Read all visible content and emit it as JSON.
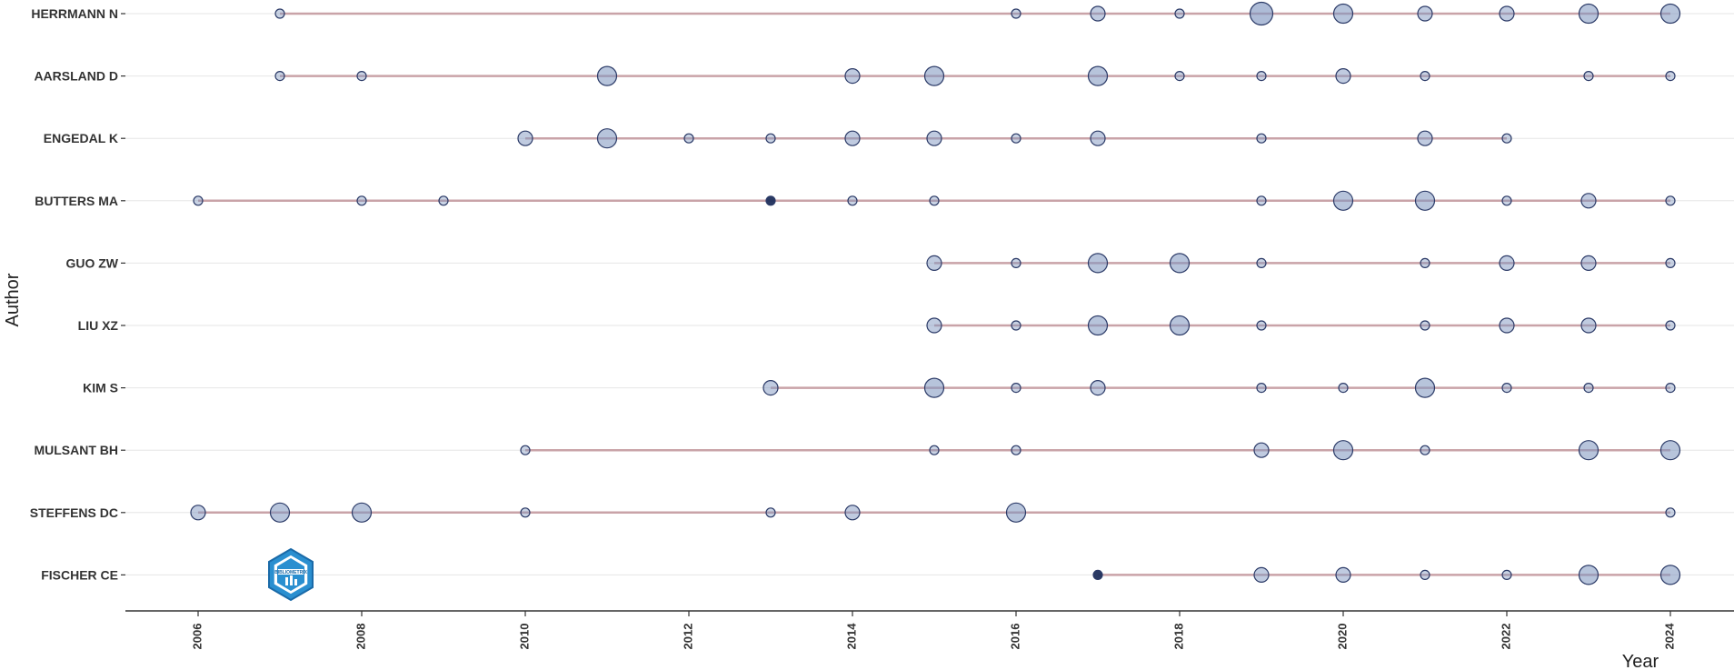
{
  "chart_data": {
    "type": "scatter",
    "subtype": "author-production-over-time",
    "xlabel": "Year",
    "ylabel": "Author",
    "xlim": [
      2006,
      2024
    ],
    "x_ticks": [
      "2006",
      "2008",
      "2010",
      "2012",
      "2014",
      "2016",
      "2018",
      "2020",
      "2022",
      "2024"
    ],
    "grid": true,
    "colors": {
      "line": "#c9a3a8",
      "point_fill": "#7f95bf",
      "point_stroke": "#2b3a67",
      "dark_point": "#1f2f5c",
      "grid": "#e6e6e6",
      "axis": "#333333"
    },
    "logo_text": "BIBLIOMETRIX",
    "authors": [
      {
        "name": "HERRMANN N",
        "points": [
          [
            2007,
            1
          ],
          [
            2016,
            1
          ],
          [
            2017,
            2
          ],
          [
            2018,
            1
          ],
          [
            2019,
            4
          ],
          [
            2020,
            3
          ],
          [
            2021,
            2
          ],
          [
            2022,
            2
          ],
          [
            2023,
            3
          ],
          [
            2024,
            3
          ]
        ]
      },
      {
        "name": "AARSLAND D",
        "points": [
          [
            2007,
            1
          ],
          [
            2008,
            1
          ],
          [
            2011,
            3
          ],
          [
            2014,
            2
          ],
          [
            2015,
            3
          ],
          [
            2017,
            3
          ],
          [
            2018,
            1
          ],
          [
            2019,
            1
          ],
          [
            2020,
            2
          ],
          [
            2021,
            1
          ],
          [
            2023,
            1
          ],
          [
            2024,
            1
          ]
        ]
      },
      {
        "name": "ENGEDAL K",
        "points": [
          [
            2010,
            2
          ],
          [
            2011,
            3
          ],
          [
            2012,
            1
          ],
          [
            2013,
            1
          ],
          [
            2014,
            2
          ],
          [
            2015,
            2
          ],
          [
            2016,
            1
          ],
          [
            2017,
            2
          ],
          [
            2019,
            1
          ],
          [
            2021,
            2
          ],
          [
            2022,
            1
          ]
        ]
      },
      {
        "name": "BUTTERS MA",
        "points": [
          [
            2006,
            1
          ],
          [
            2008,
            1
          ],
          [
            2009,
            1
          ],
          [
            2013,
            1
          ],
          [
            2014,
            1
          ],
          [
            2015,
            1
          ],
          [
            2019,
            1
          ],
          [
            2020,
            3
          ],
          [
            2021,
            3
          ],
          [
            2022,
            1
          ],
          [
            2023,
            2
          ],
          [
            2024,
            1
          ]
        ]
      },
      {
        "name": "GUO ZW",
        "points": [
          [
            2015,
            2
          ],
          [
            2016,
            1
          ],
          [
            2017,
            3
          ],
          [
            2018,
            3
          ],
          [
            2019,
            1
          ],
          [
            2021,
            1
          ],
          [
            2022,
            2
          ],
          [
            2023,
            2
          ],
          [
            2024,
            1
          ]
        ]
      },
      {
        "name": "LIU XZ",
        "points": [
          [
            2015,
            2
          ],
          [
            2016,
            1
          ],
          [
            2017,
            3
          ],
          [
            2018,
            3
          ],
          [
            2019,
            1
          ],
          [
            2021,
            1
          ],
          [
            2022,
            2
          ],
          [
            2023,
            2
          ],
          [
            2024,
            1
          ]
        ]
      },
      {
        "name": "KIM S",
        "points": [
          [
            2013,
            2
          ],
          [
            2015,
            3
          ],
          [
            2016,
            1
          ],
          [
            2017,
            2
          ],
          [
            2019,
            1
          ],
          [
            2020,
            1
          ],
          [
            2021,
            3
          ],
          [
            2022,
            1
          ],
          [
            2023,
            1
          ],
          [
            2024,
            1
          ]
        ]
      },
      {
        "name": "MULSANT BH",
        "points": [
          [
            2010,
            1
          ],
          [
            2015,
            1
          ],
          [
            2016,
            1
          ],
          [
            2019,
            2
          ],
          [
            2020,
            3
          ],
          [
            2021,
            1
          ],
          [
            2023,
            3
          ],
          [
            2024,
            3
          ]
        ]
      },
      {
        "name": "STEFFENS DC",
        "points": [
          [
            2006,
            2
          ],
          [
            2007,
            3
          ],
          [
            2008,
            3
          ],
          [
            2010,
            1
          ],
          [
            2013,
            1
          ],
          [
            2014,
            2
          ],
          [
            2016,
            3
          ],
          [
            2024,
            1
          ]
        ]
      },
      {
        "name": "FISCHER CE",
        "points": [
          [
            2017,
            1
          ],
          [
            2019,
            2
          ],
          [
            2020,
            2
          ],
          [
            2021,
            1
          ],
          [
            2022,
            1
          ],
          [
            2023,
            3
          ],
          [
            2024,
            3
          ]
        ]
      }
    ],
    "dark_points": [
      [
        "BUTTERS MA",
        2013
      ],
      [
        "FISCHER CE",
        2017
      ]
    ]
  }
}
